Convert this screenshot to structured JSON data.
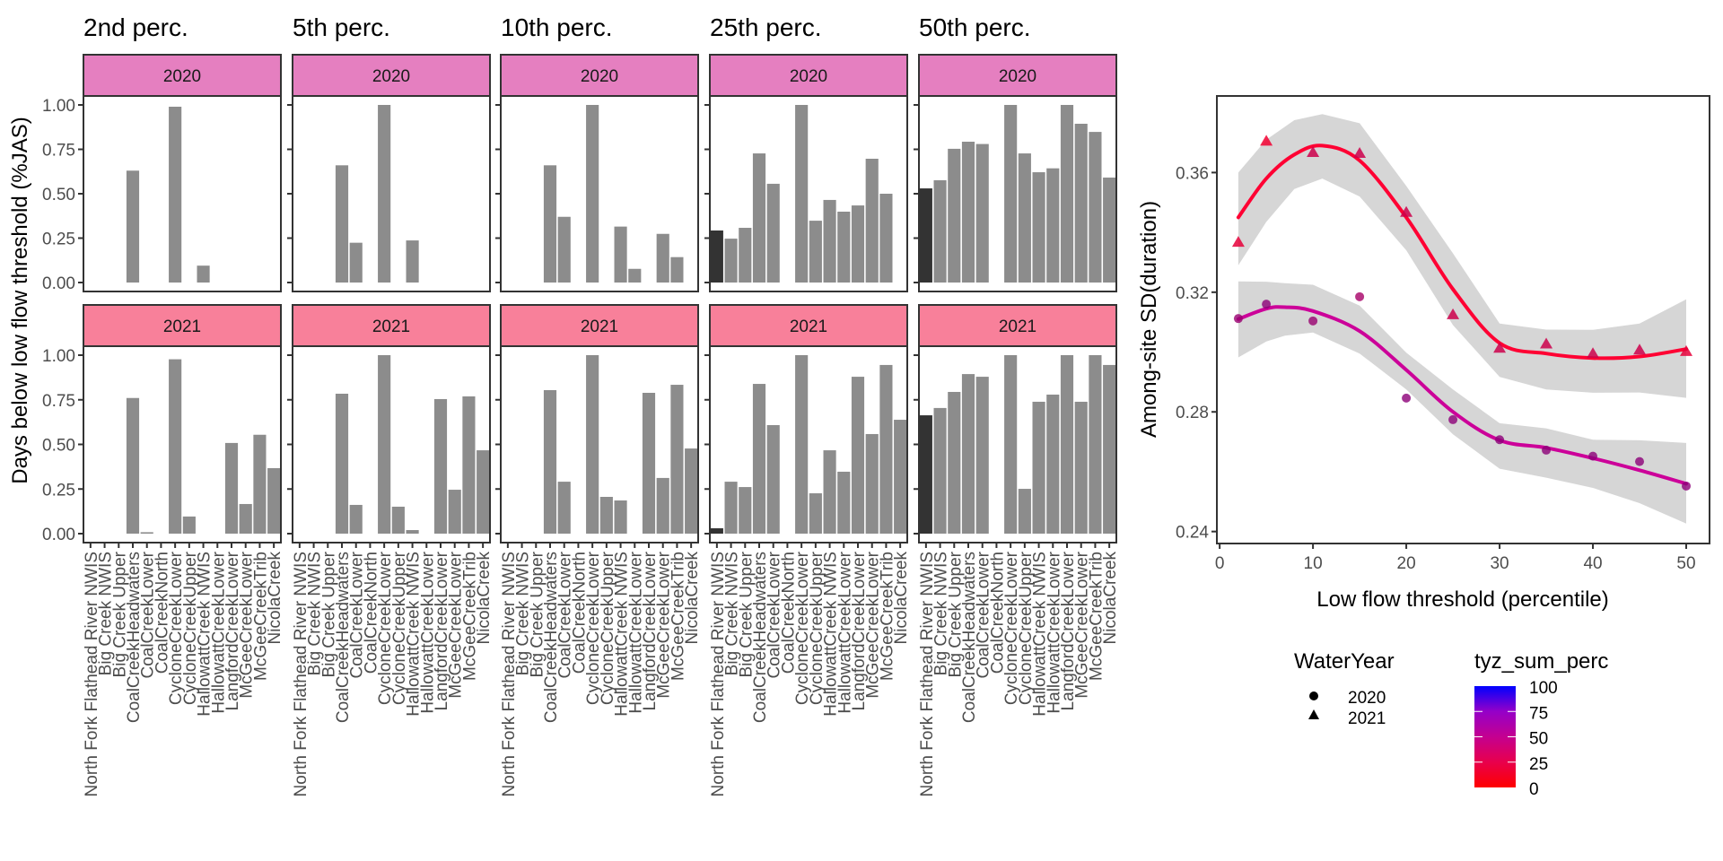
{
  "chart_data": [
    {
      "type": "bar",
      "facet_layout": "columns = low-flow percentile threshold, rows = water year",
      "ylabel": "Days below low flow threshold (%JAS)",
      "xlabel": "",
      "ylim": [
        0,
        1
      ],
      "yticks": [
        "0.00",
        "0.25",
        "0.50",
        "0.75",
        "1.00"
      ],
      "categories": [
        "North Fork Flathead River NWIS",
        "Big Creek NWIS",
        "Big Creek Upper",
        "CoalCreekHeadwaters",
        "CoalCreekLower",
        "CoalCreekNorth",
        "CycloneCreekLower",
        "CycloneCreekUpper",
        "HallowattCreek NWIS",
        "HallowattCreekLower",
        "LangfordCreekLower",
        "McGeeCreekLower",
        "McGeeCreekTrib",
        "NicolaCreek"
      ],
      "highlight_category": "North Fork Flathead River NWIS",
      "bar_color": "#8c8c8c",
      "highlight_color": "#333333",
      "columns": [
        "2nd perc.",
        "5th perc.",
        "10th perc.",
        "25th perc.",
        "50th perc."
      ],
      "rows": [
        {
          "label": "2020",
          "strip_color": "#e57fc0"
        },
        {
          "label": "2021",
          "strip_color": "#f8809a"
        }
      ],
      "panels": [
        {
          "column": "2nd perc.",
          "row": "2020",
          "values": [
            0,
            0,
            0,
            0.63,
            0,
            0,
            0.99,
            0,
            0.095,
            0,
            0,
            0,
            0,
            0
          ]
        },
        {
          "column": "5th perc.",
          "row": "2020",
          "values": [
            0,
            0,
            0,
            0.66,
            0.224,
            0,
            1.0,
            0,
            0.237,
            0,
            0,
            0,
            0,
            0
          ]
        },
        {
          "column": "10th perc.",
          "row": "2020",
          "values": [
            0,
            0,
            0,
            0.66,
            0.37,
            0,
            1.0,
            0,
            0.315,
            0.077,
            0,
            0.274,
            0.143,
            0
          ]
        },
        {
          "column": "25th perc.",
          "row": "2020",
          "values": [
            0.293,
            0.247,
            0.308,
            0.727,
            0.556,
            0,
            1.0,
            0.348,
            0.465,
            0.399,
            0.434,
            0.697,
            0.5,
            0
          ]
        },
        {
          "column": "50th perc.",
          "row": "2020",
          "values": [
            0.53,
            0.576,
            0.753,
            0.793,
            0.78,
            0,
            1.0,
            0.727,
            0.621,
            0.643,
            1.0,
            0.894,
            0.848,
            0.591
          ]
        },
        {
          "column": "2nd perc.",
          "row": "2021",
          "values": [
            0,
            0,
            0,
            0.76,
            0.008,
            0,
            0.977,
            0.096,
            0,
            0,
            0.508,
            0.166,
            0.554,
            0.367
          ]
        },
        {
          "column": "5th perc.",
          "row": "2021",
          "values": [
            0,
            0,
            0,
            0.784,
            0.161,
            0,
            1.0,
            0.151,
            0.02,
            0,
            0.754,
            0.246,
            0.769,
            0.467
          ]
        },
        {
          "column": "10th perc.",
          "row": "2021",
          "values": [
            0,
            0,
            0,
            0.804,
            0.291,
            0,
            1.0,
            0.206,
            0.186,
            0,
            0.789,
            0.312,
            0.834,
            0.477
          ]
        },
        {
          "column": "25th perc.",
          "row": "2021",
          "values": [
            0.03,
            0.291,
            0.261,
            0.839,
            0.608,
            0,
            1.0,
            0.226,
            0.467,
            0.347,
            0.879,
            0.558,
            0.945,
            0.638
          ]
        },
        {
          "column": "50th perc.",
          "row": "2021",
          "values": [
            0.663,
            0.704,
            0.794,
            0.894,
            0.879,
            0,
            1.0,
            0.251,
            0.739,
            0.779,
            1.0,
            0.739,
            1.0,
            0.945
          ]
        }
      ]
    },
    {
      "type": "scatter",
      "xlabel": "Low flow threshold (percentile)",
      "ylabel": "Among-site SD(duration)",
      "xlim": [
        -0.3,
        52.5
      ],
      "ylim": [
        0.236,
        0.3856
      ],
      "xticks": [
        "0",
        "10",
        "20",
        "30",
        "40",
        "50"
      ],
      "yticks": [
        "0.24",
        "0.28",
        "0.32",
        "0.36"
      ],
      "grid": false,
      "series": [
        {
          "name": "2020",
          "shape": "circle",
          "line_color": "#cc0099",
          "x": [
            2,
            5,
            10,
            15,
            20,
            25,
            30,
            35,
            40,
            45,
            50
          ],
          "y": [
            0.3112,
            0.316,
            0.3104,
            0.3185,
            0.2846,
            0.2774,
            0.2707,
            0.2672,
            0.2652,
            0.2634,
            0.2552
          ],
          "tyz_sum_perc": [
            40,
            45,
            40,
            35,
            45,
            45,
            45,
            45,
            45,
            45,
            45
          ],
          "smooth": {
            "x": [
              2,
              5,
              7,
              10,
              15,
              20,
              25,
              30,
              35,
              40,
              45,
              50
            ],
            "y": [
              0.311,
              0.3145,
              0.315,
              0.3137,
              0.307,
              0.294,
              0.28,
              0.2705,
              0.268,
              0.2645,
              0.2605,
              0.256
            ],
            "ci_low": [
              0.2982,
              0.3035,
              0.3055,
              0.3065,
              0.2995,
              0.2875,
              0.2725,
              0.261,
              0.258,
              0.2546,
              0.2495,
              0.2427
            ],
            "ci_high": [
              0.3236,
              0.3235,
              0.323,
              0.3225,
              0.3155,
              0.2998,
              0.2875,
              0.2762,
              0.2745,
              0.2707,
              0.2705,
              0.2696
            ]
          }
        },
        {
          "name": "2021",
          "shape": "triangle",
          "line_color": "#ff0033",
          "x": [
            2,
            5,
            10,
            15,
            20,
            25,
            30,
            35,
            40,
            45,
            50
          ],
          "y": [
            0.3367,
            0.3705,
            0.3667,
            0.3664,
            0.3467,
            0.3125,
            0.3013,
            0.3027,
            0.2995,
            0.3007,
            0.3002
          ],
          "tyz_sum_perc": [
            10,
            5,
            20,
            20,
            20,
            20,
            20,
            20,
            20,
            20,
            10
          ],
          "smooth": {
            "x": [
              2,
              5,
              8,
              11,
              15,
              20,
              25,
              30,
              35,
              40,
              45,
              50
            ],
            "y": [
              0.345,
              0.358,
              0.366,
              0.369,
              0.364,
              0.345,
              0.321,
              0.303,
              0.2995,
              0.298,
              0.2985,
              0.301
            ],
            "ci_low": [
              0.329,
              0.3435,
              0.3545,
              0.358,
              0.352,
              0.334,
              0.309,
              0.2917,
              0.2875,
              0.2864,
              0.2865,
              0.2847
            ],
            "ci_high": [
              0.36,
              0.371,
              0.3775,
              0.3795,
              0.3765,
              0.3555,
              0.333,
              0.3095,
              0.3075,
              0.3074,
              0.3095,
              0.3176
            ]
          }
        }
      ],
      "legend": {
        "placement": "bottom",
        "shape_legend": {
          "title": "WaterYear",
          "entries": [
            {
              "label": "2020",
              "shape": "circle"
            },
            {
              "label": "2021",
              "shape": "triangle"
            }
          ]
        },
        "color_legend": {
          "title": "tyz_sum_perc",
          "low_color": "#ff0000",
          "high_color": "#0000ff",
          "ticks": [
            "0",
            "25",
            "50",
            "75",
            "100"
          ],
          "range": [
            0,
            100
          ]
        }
      }
    }
  ]
}
